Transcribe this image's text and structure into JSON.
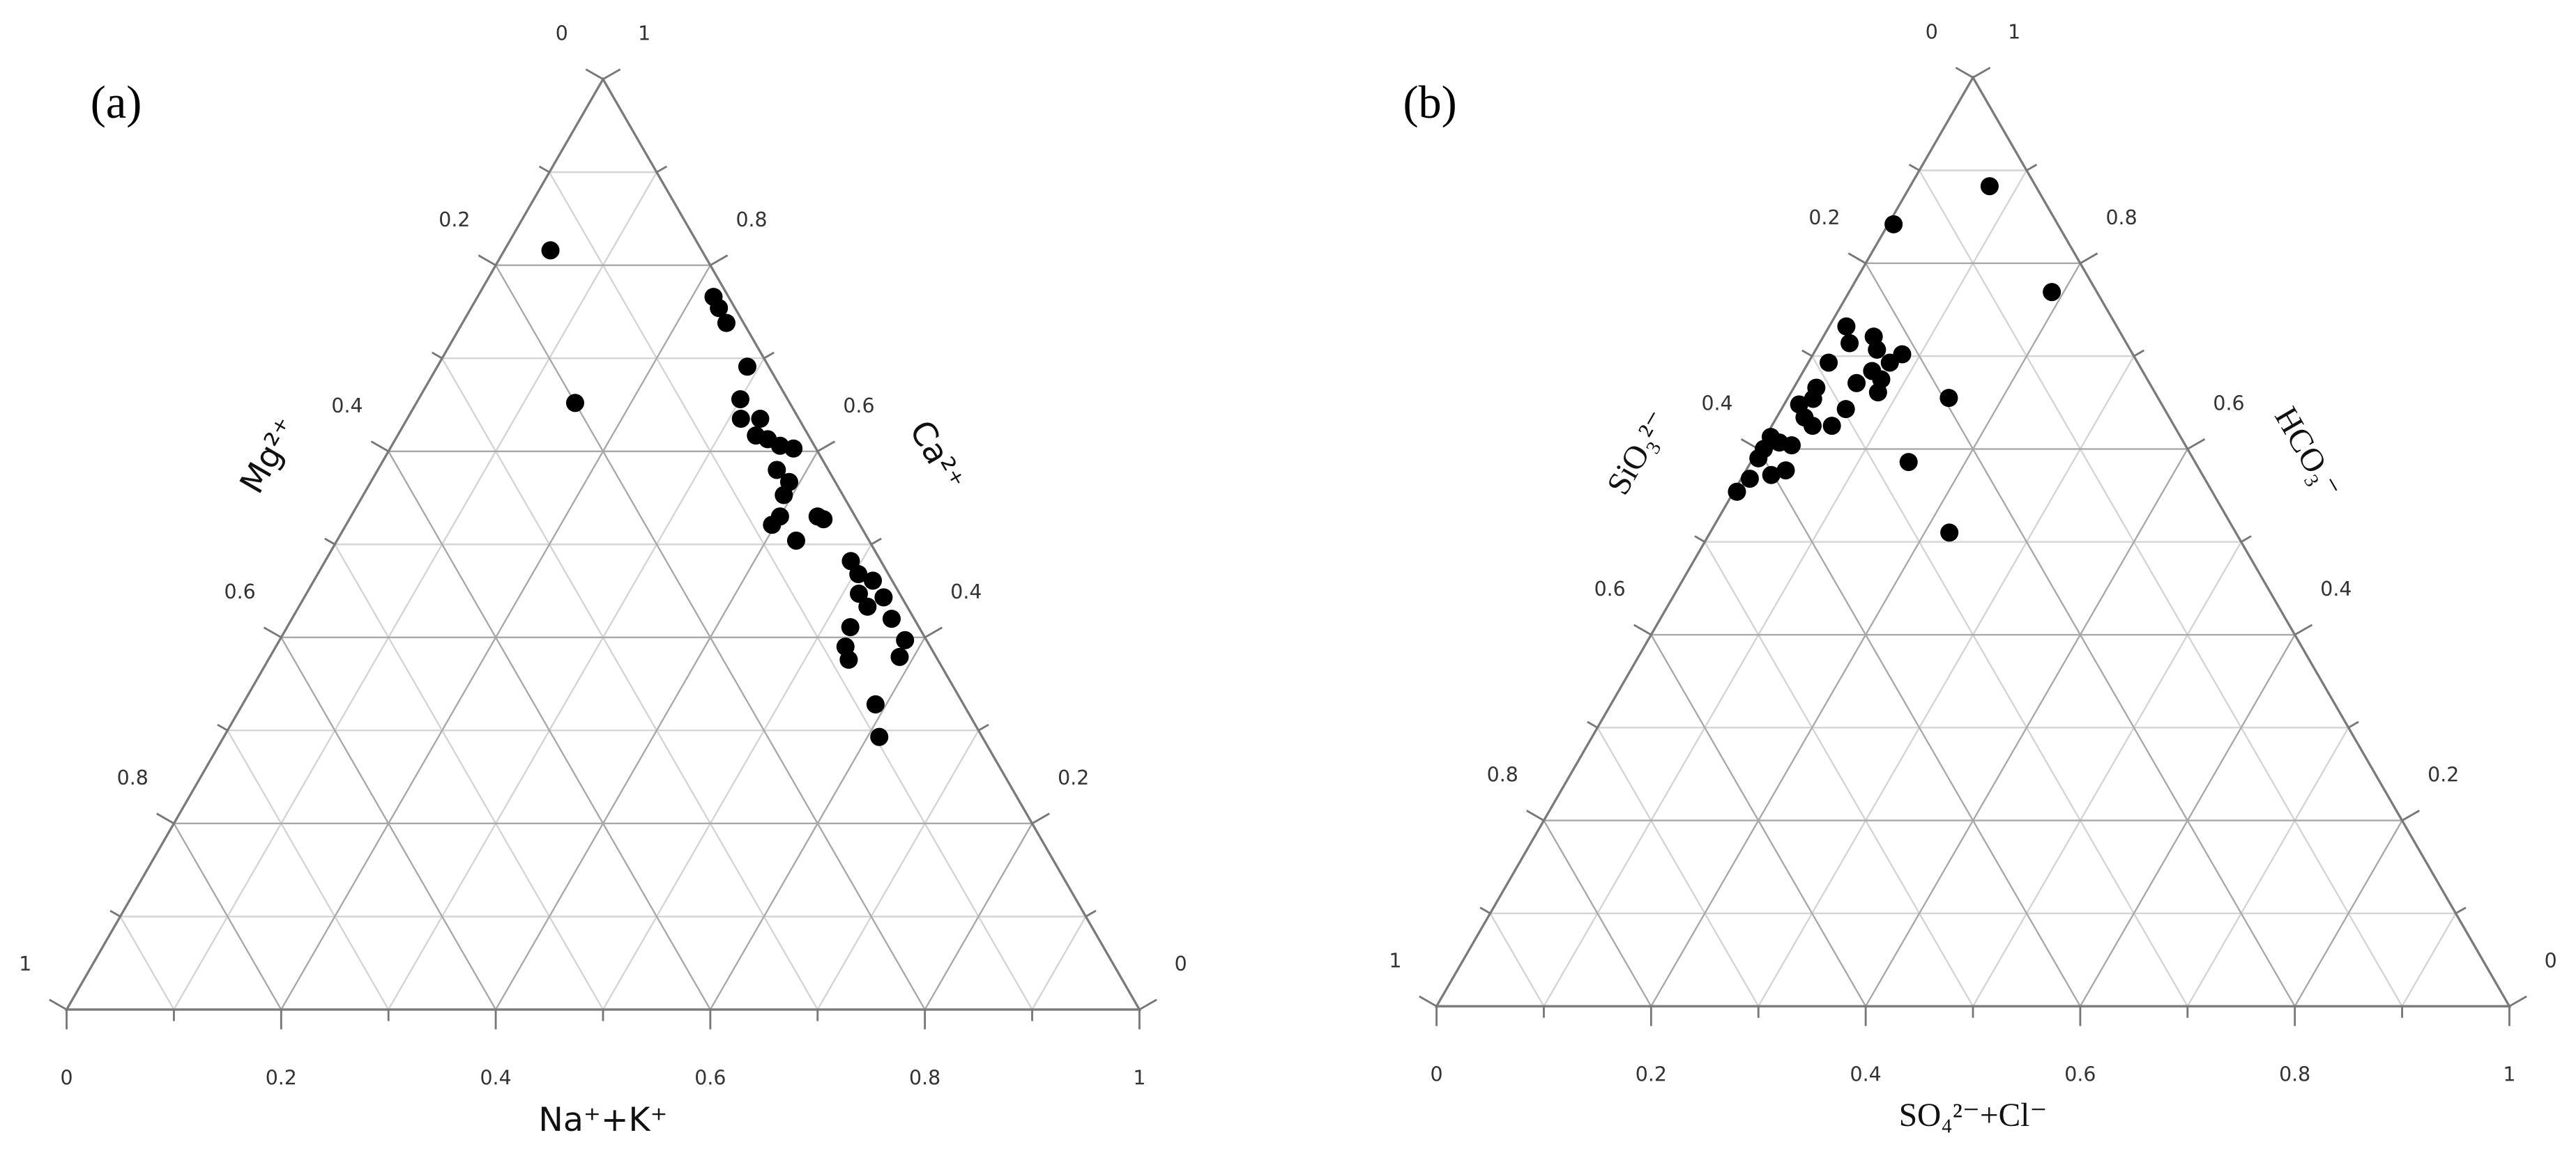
{
  "chart_data": [
    {
      "type": "ternary",
      "panel_label": "(a)",
      "axis_labels": {
        "bottom": "Na⁺+K⁺",
        "left": "Mg²⁺",
        "right": "Ca²⁺"
      },
      "ticks": [
        0,
        0.2,
        0.4,
        0.6,
        0.8,
        1
      ],
      "minor_ticks": [
        0.1,
        0.3,
        0.5,
        0.7,
        0.9
      ],
      "grid": true,
      "point_color": "#000000",
      "x": [
        0.043,
        0.148,
        0.22,
        0.231,
        0.246,
        0.289,
        0.3,
        0.311,
        0.329,
        0.334,
        0.347,
        0.362,
        0.376,
        0.372,
        0.39,
        0.392,
        0.4,
        0.397,
        0.435,
        0.442,
        0.428,
        0.49,
        0.504,
        0.521,
        0.515,
        0.54,
        0.53,
        0.559,
        0.525,
        0.583,
        0.531,
        0.587,
        0.541,
        0.59,
        0.611
      ],
      "y": [
        0.816,
        0.652,
        0.766,
        0.754,
        0.738,
        0.691,
        0.656,
        0.635,
        0.635,
        0.617,
        0.613,
        0.606,
        0.603,
        0.58,
        0.567,
        0.553,
        0.53,
        0.521,
        0.53,
        0.527,
        0.504,
        0.482,
        0.468,
        0.461,
        0.447,
        0.443,
        0.433,
        0.42,
        0.411,
        0.397,
        0.39,
        0.379,
        0.376,
        0.328,
        0.293
      ]
    },
    {
      "type": "ternary",
      "panel_label": "(b)",
      "axis_labels": {
        "bottom": "SO₄²⁻+Cl⁻",
        "left": "SiO₃²⁻",
        "right": "HCO₃⁻"
      },
      "ticks": [
        0,
        0.2,
        0.4,
        0.6,
        0.8,
        1
      ],
      "minor_ticks": [
        0.1,
        0.3,
        0.5,
        0.7,
        0.9
      ],
      "grid": true,
      "point_color": "#000000",
      "x": [
        0.074,
        0.005,
        0.189,
        0.15,
        0.147,
        0.223,
        0.016,
        0.028,
        0.047,
        0.057,
        0.083,
        0.076,
        0.019,
        0.064,
        0.077,
        0.056,
        0.081,
        0.021,
        0.024,
        0.06,
        0.014,
        0.026,
        0.056,
        0.038,
        0.029,
        0.005,
        0.005,
        0.016,
        0.005,
        0.037,
        0.026,
        0.008,
        0.003
      ],
      "y": [
        0.883,
        0.842,
        0.769,
        0.655,
        0.586,
        0.51,
        0.732,
        0.714,
        0.721,
        0.707,
        0.702,
        0.693,
        0.693,
        0.684,
        0.675,
        0.671,
        0.661,
        0.666,
        0.654,
        0.643,
        0.648,
        0.634,
        0.625,
        0.625,
        0.604,
        0.613,
        0.6,
        0.607,
        0.59,
        0.577,
        0.572,
        0.568,
        0.554
      ]
    }
  ]
}
